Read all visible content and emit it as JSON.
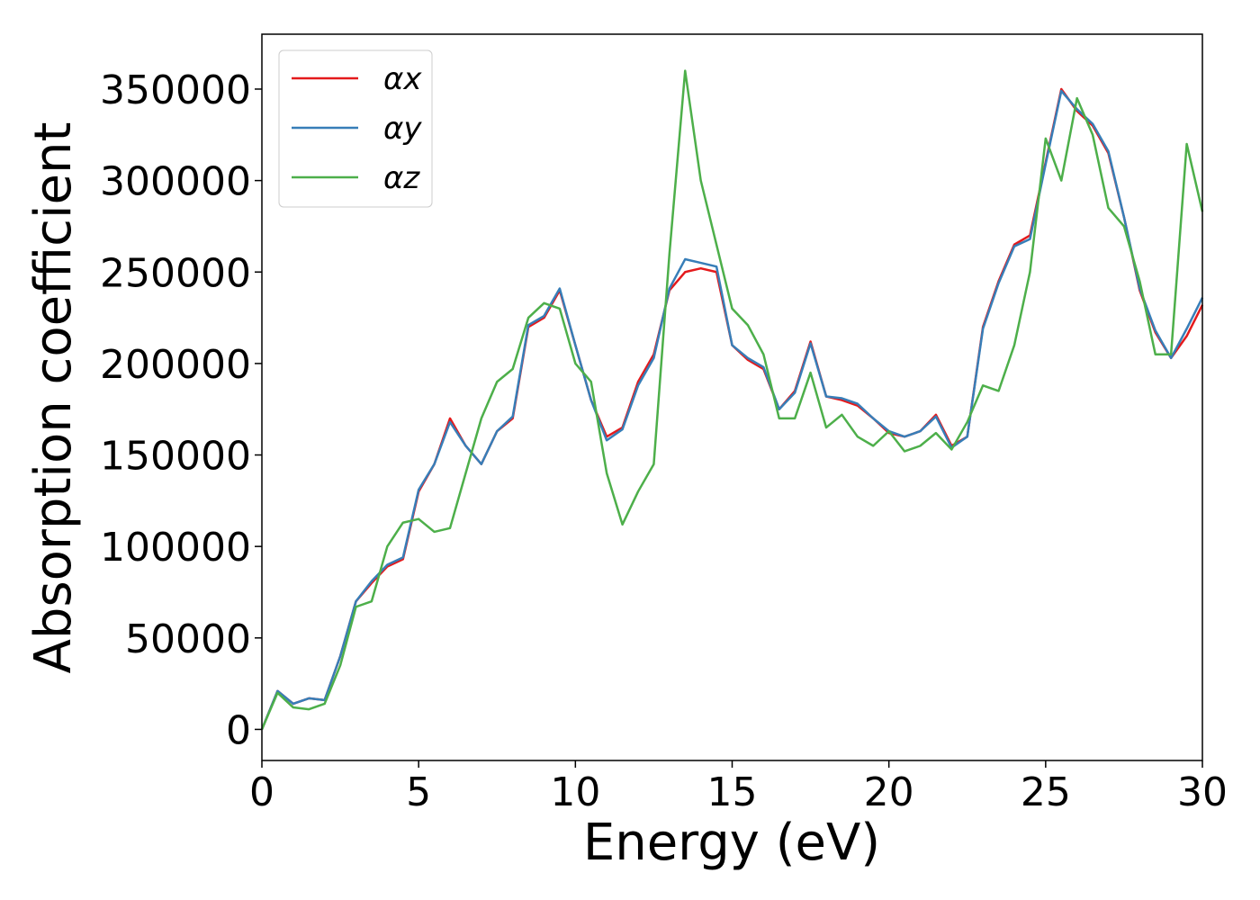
{
  "chart_data": {
    "type": "line",
    "xlabel": "Energy (eV)",
    "ylabel": "Absorption coefficient",
    "x": [
      0,
      0.5,
      1,
      1.5,
      2,
      2.5,
      3,
      3.5,
      4,
      4.5,
      5,
      5.5,
      6,
      6.5,
      7,
      7.5,
      8,
      8.5,
      9,
      9.5,
      10,
      10.5,
      11,
      11.5,
      12,
      12.5,
      13,
      13.5,
      14,
      14.5,
      15,
      15.5,
      16,
      16.5,
      17,
      17.5,
      18,
      18.5,
      19,
      19.5,
      20,
      20.5,
      21,
      21.5,
      22,
      22.5,
      23,
      23.5,
      24,
      24.5,
      25,
      25.5,
      26,
      26.5,
      27,
      27.5,
      28,
      28.5,
      29,
      29.5,
      30
    ],
    "series": [
      {
        "name": "αx",
        "color": "#e41a1c",
        "values": [
          0,
          21000,
          14000,
          17000,
          16000,
          40000,
          70000,
          80000,
          89000,
          93000,
          130000,
          145000,
          170000,
          155000,
          145000,
          163000,
          170000,
          220000,
          225000,
          240000,
          210000,
          180000,
          160000,
          165000,
          190000,
          205000,
          240000,
          250000,
          252000,
          250000,
          210000,
          202000,
          197000,
          175000,
          185000,
          212000,
          182000,
          180000,
          177000,
          170000,
          162000,
          160000,
          163000,
          172000,
          155000,
          160000,
          220000,
          245000,
          265000,
          270000,
          310000,
          350000,
          338000,
          330000,
          315000,
          280000,
          240000,
          217000,
          203000,
          215000,
          232000
        ]
      },
      {
        "name": "αy",
        "color": "#377eb8",
        "values": [
          0,
          21000,
          14000,
          17000,
          16000,
          40000,
          70000,
          81000,
          90000,
          94000,
          131000,
          145000,
          168000,
          155000,
          145000,
          163000,
          171000,
          221000,
          226000,
          241000,
          210000,
          180000,
          158000,
          164000,
          188000,
          203000,
          241000,
          257000,
          255000,
          253000,
          210000,
          203000,
          198000,
          175000,
          184000,
          211000,
          182000,
          181000,
          178000,
          170000,
          163000,
          160000,
          163000,
          171000,
          154000,
          160000,
          219000,
          244000,
          264000,
          268000,
          309000,
          349000,
          339000,
          331000,
          316000,
          280000,
          241000,
          218000,
          203000,
          219000,
          236000
        ]
      },
      {
        "name": "αz",
        "color": "#4daf4a",
        "values": [
          0,
          20000,
          12000,
          11000,
          14000,
          35000,
          67000,
          70000,
          100000,
          113000,
          115000,
          108000,
          110000,
          140000,
          170000,
          190000,
          197000,
          225000,
          233000,
          230000,
          200000,
          190000,
          140000,
          112000,
          130000,
          145000,
          260000,
          360000,
          300000,
          265000,
          230000,
          221000,
          205000,
          170000,
          170000,
          195000,
          165000,
          172000,
          160000,
          155000,
          163000,
          152000,
          155000,
          162000,
          153000,
          168000,
          188000,
          185000,
          210000,
          250000,
          323000,
          300000,
          345000,
          325000,
          285000,
          275000,
          245000,
          205000,
          205000,
          320000,
          283000
        ]
      }
    ],
    "xlim": [
      0,
      30
    ],
    "xticks": [
      0,
      5,
      10,
      15,
      20,
      25,
      30
    ],
    "ylim": [
      -17000,
      380000
    ],
    "yticks": [
      0,
      50000,
      100000,
      150000,
      200000,
      250000,
      300000,
      350000
    ],
    "legend": "upper left",
    "grid": false
  }
}
